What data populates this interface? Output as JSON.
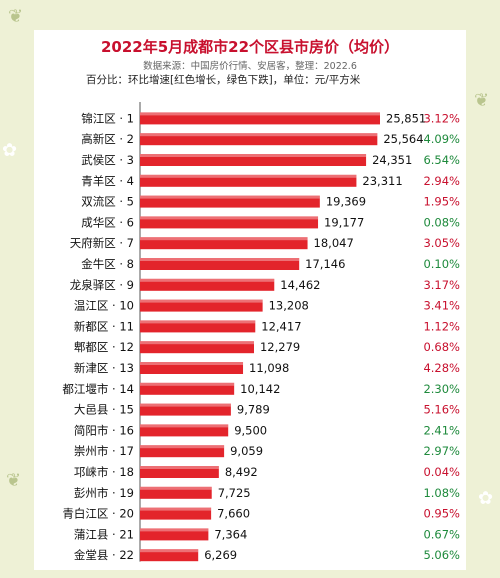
{
  "header": {
    "title": "2022年5月成都市22个区县市房价（均价）",
    "source": "数据来源：中国房价行情、安居客，整理：2022.6",
    "note": "百分比：环比增速[红色增长，绿色下跌]，单位：元/平方米"
  },
  "colors": {
    "bar": "#e3242b",
    "up": "#c8102e",
    "down": "#1e8a3c"
  },
  "chart_data": {
    "type": "bar",
    "orientation": "horizontal",
    "categories": [
      "锦江区 · 1",
      "高新区 · 2",
      "武侯区 · 3",
      "青羊区 · 4",
      "双流区 · 5",
      "成华区 · 6",
      "天府新区 · 7",
      "金牛区 · 8",
      "龙泉驿区 · 9",
      "温江区 · 10",
      "新都区 · 11",
      "郫都区 · 12",
      "新津区 · 13",
      "都江堰市 · 14",
      "大邑县 · 15",
      "简阳市 · 16",
      "崇州市 · 17",
      "邛崃市 · 18",
      "彭州市 · 19",
      "青白江区 · 20",
      "蒲江县 · 21",
      "金堂县 · 22"
    ],
    "values": [
      25851,
      25564,
      24351,
      23311,
      19369,
      19177,
      18047,
      17146,
      14462,
      13208,
      12417,
      12279,
      11098,
      10142,
      9789,
      9500,
      9059,
      8492,
      7725,
      7660,
      7364,
      6269
    ],
    "value_labels": [
      "25,851",
      "25,564",
      "24,351",
      "23,311",
      "19,369",
      "19,177",
      "18,047",
      "17,146",
      "14,462",
      "13,208",
      "12,417",
      "12,279",
      "11,098",
      "10,142",
      "9,789",
      "9,500",
      "9,059",
      "8,492",
      "7,725",
      "7,660",
      "7,364",
      "6,269"
    ],
    "changes": [
      "3.12%",
      "4.09%",
      "6.54%",
      "2.94%",
      "1.95%",
      "0.08%",
      "3.05%",
      "0.10%",
      "3.17%",
      "3.41%",
      "1.12%",
      "0.68%",
      "4.28%",
      "2.30%",
      "5.16%",
      "2.41%",
      "2.97%",
      "0.04%",
      "1.08%",
      "0.95%",
      "0.67%",
      "5.06%"
    ],
    "change_direction": [
      "up",
      "down",
      "down",
      "up",
      "up",
      "down",
      "up",
      "down",
      "up",
      "up",
      "up",
      "up",
      "up",
      "down",
      "up",
      "down",
      "down",
      "up",
      "down",
      "up",
      "down",
      "down"
    ],
    "unit": "元/平方米",
    "xlim": [
      0,
      25851
    ]
  }
}
